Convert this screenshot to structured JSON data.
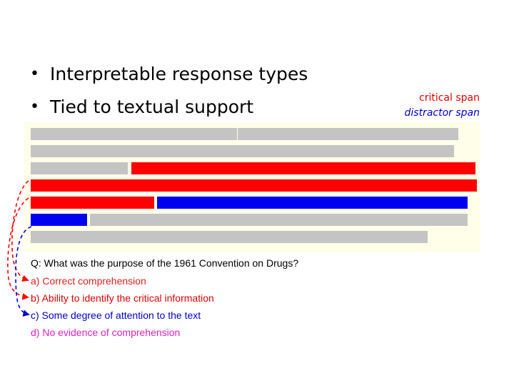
{
  "bullets": [
    "Interpretable response types",
    "Tied to textual support"
  ],
  "legend": {
    "critical": "critical span",
    "distractor": "distractor span"
  },
  "question": "Q: What was the purpose of the 1961 Convention on Drugs?",
  "options": [
    "a) Correct comprehension",
    "b) Ability to identify the critical information",
    "c) Some degree of attention to the text",
    "d) No evidence of comprehension"
  ],
  "colors": {
    "critical": "#ff0000",
    "distractor": "#0000f0",
    "neutral": "#c4c4c4",
    "option_d": "#e020c0"
  }
}
